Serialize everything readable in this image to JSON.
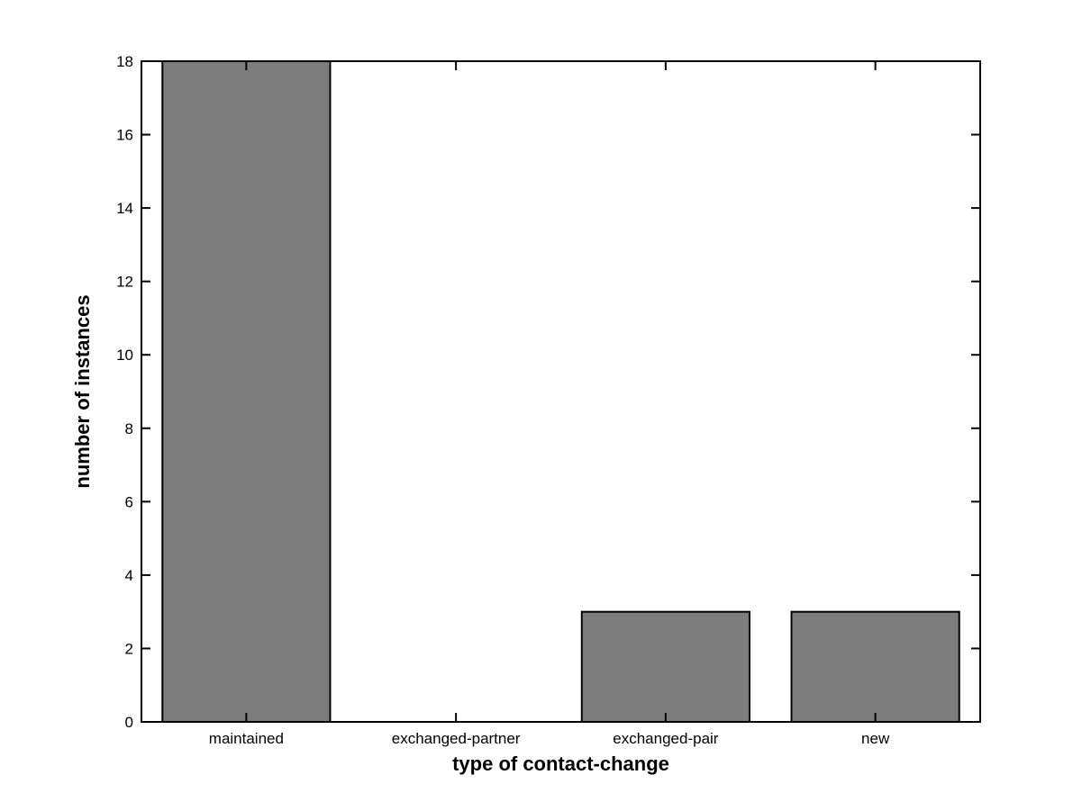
{
  "chart_data": {
    "type": "bar",
    "title": "",
    "categories": [
      "maintained",
      "exchanged-partner",
      "exchanged-pair",
      "new"
    ],
    "values": [
      18,
      0,
      3,
      3
    ],
    "xlabel": "type of contact-change",
    "ylabel": "number of instances",
    "ylim": [
      0,
      18
    ],
    "yticks": [
      0,
      2,
      4,
      6,
      8,
      10,
      12,
      14,
      16,
      18
    ],
    "grid": false,
    "legend": null,
    "bar_width_fraction": 0.8,
    "colors": {
      "bar_fill": "#7d7d7d",
      "bar_edge": "#000000",
      "axis": "#000000",
      "text": "#000000",
      "background": "#ffffff"
    }
  }
}
